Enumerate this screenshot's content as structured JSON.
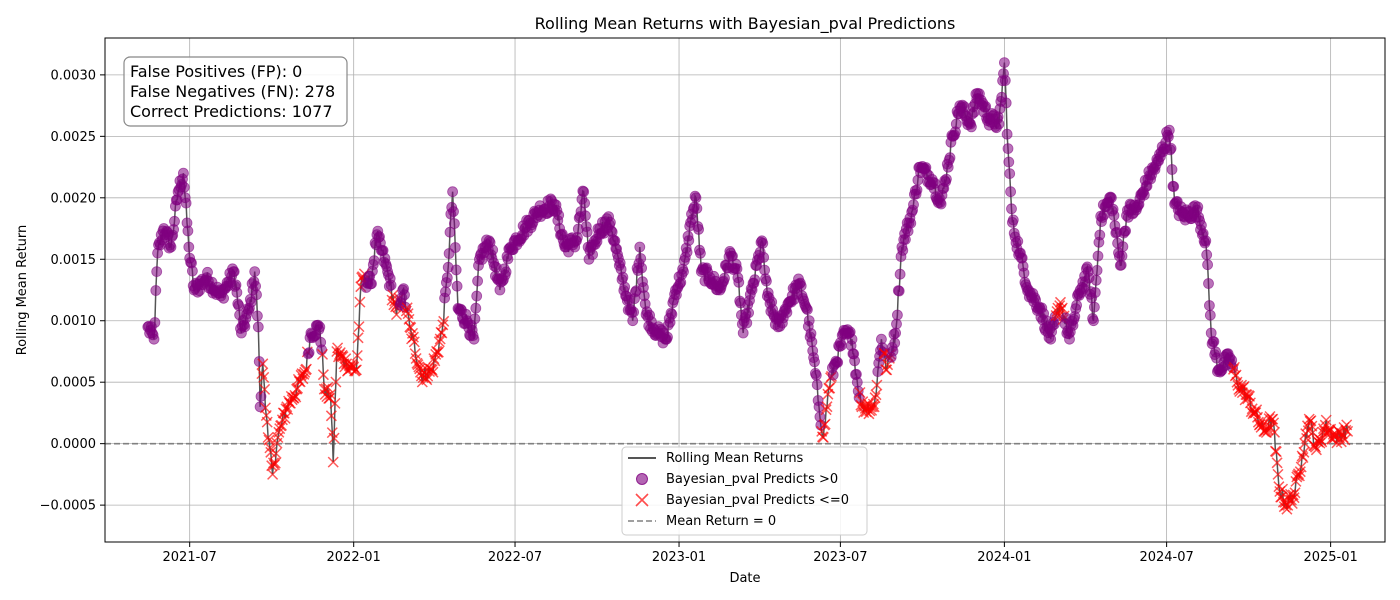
{
  "chart_data": {
    "type": "line",
    "title": "Rolling Mean Returns with Bayesian_pval Predictions",
    "xlabel": "Date",
    "ylabel": "Rolling Mean Return",
    "x_range": [
      "2021-03-28",
      "2025-03-03"
    ],
    "ylim": [
      -0.0008,
      0.0033
    ],
    "grid": true,
    "x_ticks": [
      "2021-07",
      "2022-01",
      "2022-07",
      "2023-01",
      "2023-07",
      "2024-01",
      "2024-07",
      "2025-01"
    ],
    "x_tick_dates": [
      "2021-07-01",
      "2022-01-01",
      "2022-07-01",
      "2023-01-01",
      "2023-07-01",
      "2024-01-01",
      "2024-07-01",
      "2025-01-01"
    ],
    "y_ticks": [
      -0.0005,
      0.0,
      0.0005,
      0.001,
      0.0015,
      0.002,
      0.0025,
      0.003
    ],
    "y_tick_labels": [
      "−0.0005",
      "0.0000",
      "0.0005",
      "0.0010",
      "0.0015",
      "0.0020",
      "0.0025",
      "0.0030"
    ],
    "stats_box": {
      "fp": "False Positives (FP): 0",
      "fn": "False Negatives (FN): 278",
      "correct": "Correct Predictions: 1077"
    },
    "legend": {
      "placement": "bottom-center",
      "line": "Rolling Mean Returns",
      "pos": "Bayesian_pval Predicts >0",
      "neg": "Bayesian_pval Predicts <=0",
      "mean": "Mean Return = 0"
    },
    "colors": {
      "line": "#555555",
      "positive": "#800080",
      "negative": "#ff0000",
      "mean_line": "#808080"
    },
    "reference_line": {
      "y": 0.0,
      "label": "Mean Return = 0"
    },
    "series_keyframes": [
      [
        "2021-05-15",
        0.00095,
        1
      ],
      [
        "2021-05-22",
        0.00085,
        1
      ],
      [
        "2021-05-26",
        0.00155,
        1
      ],
      [
        "2021-06-02",
        0.00175,
        1
      ],
      [
        "2021-06-10",
        0.0016,
        1
      ],
      [
        "2021-06-18",
        0.00205,
        1
      ],
      [
        "2021-06-24",
        0.0022,
        1
      ],
      [
        "2021-06-30",
        0.0016,
        1
      ],
      [
        "2021-07-06",
        0.00125,
        1
      ],
      [
        "2021-07-20",
        0.00135,
        1
      ],
      [
        "2021-08-05",
        0.0012,
        1
      ],
      [
        "2021-08-20",
        0.0014,
        1
      ],
      [
        "2021-08-28",
        0.0009,
        1
      ],
      [
        "2021-09-06",
        0.0011,
        1
      ],
      [
        "2021-09-12",
        0.0014,
        1
      ],
      [
        "2021-09-16",
        0.00095,
        1
      ],
      [
        "2021-09-18",
        0.0003,
        1
      ],
      [
        "2021-09-21",
        0.00065,
        0
      ],
      [
        "2021-09-27",
        5e-05,
        0
      ],
      [
        "2021-10-02",
        -0.00025,
        0
      ],
      [
        "2021-10-08",
        5e-05,
        0
      ],
      [
        "2021-10-18",
        0.0003,
        0
      ],
      [
        "2021-10-30",
        0.00045,
        0
      ],
      [
        "2021-11-08",
        0.0006,
        0
      ],
      [
        "2021-11-14",
        0.0009,
        1
      ],
      [
        "2021-11-24",
        0.00095,
        1
      ],
      [
        "2021-11-30",
        0.0004,
        0
      ],
      [
        "2021-12-06",
        0.0004,
        0
      ],
      [
        "2021-12-09",
        -0.00015,
        0
      ],
      [
        "2021-12-13",
        0.00075,
        0
      ],
      [
        "2021-12-24",
        0.00065,
        0
      ],
      [
        "2022-01-04",
        0.0006,
        0
      ],
      [
        "2022-01-10",
        0.00135,
        0
      ],
      [
        "2022-01-20",
        0.0013,
        1
      ],
      [
        "2022-01-27",
        0.0017,
        1
      ],
      [
        "2022-02-08",
        0.0014,
        1
      ],
      [
        "2022-02-18",
        0.00105,
        0
      ],
      [
        "2022-02-25",
        0.00125,
        1
      ],
      [
        "2022-03-05",
        0.00095,
        0
      ],
      [
        "2022-03-18",
        0.00055,
        0
      ],
      [
        "2022-03-30",
        0.0006,
        0
      ],
      [
        "2022-04-10",
        0.0009,
        0
      ],
      [
        "2022-04-16",
        0.00135,
        1
      ],
      [
        "2022-04-22",
        0.00205,
        1
      ],
      [
        "2022-04-28",
        0.0011,
        1
      ],
      [
        "2022-05-08",
        0.001,
        1
      ],
      [
        "2022-05-16",
        0.00085,
        1
      ],
      [
        "2022-05-22",
        0.0015,
        1
      ],
      [
        "2022-06-02",
        0.00165,
        1
      ],
      [
        "2022-06-14",
        0.00125,
        1
      ],
      [
        "2022-06-26",
        0.0016,
        1
      ],
      [
        "2022-07-12",
        0.00175,
        1
      ],
      [
        "2022-07-28",
        0.0019,
        1
      ],
      [
        "2022-08-14",
        0.00195,
        1
      ],
      [
        "2022-08-26",
        0.0016,
        1
      ],
      [
        "2022-09-08",
        0.00165,
        1
      ],
      [
        "2022-09-16",
        0.00205,
        1
      ],
      [
        "2022-09-22",
        0.0015,
        1
      ],
      [
        "2022-10-04",
        0.00175,
        1
      ],
      [
        "2022-10-16",
        0.0018,
        1
      ],
      [
        "2022-10-26",
        0.00145,
        1
      ],
      [
        "2022-11-03",
        0.0012,
        1
      ],
      [
        "2022-11-10",
        0.001,
        1
      ],
      [
        "2022-11-18",
        0.0016,
        1
      ],
      [
        "2022-11-25",
        0.00105,
        1
      ],
      [
        "2022-12-08",
        0.0009,
        1
      ],
      [
        "2022-12-18",
        0.00085,
        1
      ],
      [
        "2022-12-28",
        0.00125,
        1
      ],
      [
        "2023-01-06",
        0.0014,
        1
      ],
      [
        "2023-01-14",
        0.0018,
        1
      ],
      [
        "2023-01-20",
        0.002,
        1
      ],
      [
        "2023-01-26",
        0.0014,
        1
      ],
      [
        "2023-02-05",
        0.00135,
        1
      ],
      [
        "2023-02-16",
        0.00125,
        1
      ],
      [
        "2023-02-28",
        0.00155,
        1
      ],
      [
        "2023-03-08",
        0.00135,
        1
      ],
      [
        "2023-03-14",
        0.0009,
        1
      ],
      [
        "2023-03-24",
        0.00125,
        1
      ],
      [
        "2023-04-04",
        0.00165,
        1
      ],
      [
        "2023-04-10",
        0.0012,
        1
      ],
      [
        "2023-04-22",
        0.00095,
        1
      ],
      [
        "2023-05-04",
        0.00115,
        1
      ],
      [
        "2023-05-16",
        0.0013,
        1
      ],
      [
        "2023-05-24",
        0.0011,
        1
      ],
      [
        "2023-06-01",
        0.0007,
        1
      ],
      [
        "2023-06-07",
        0.0003,
        1
      ],
      [
        "2023-06-12",
        5e-05,
        0
      ],
      [
        "2023-06-18",
        0.00045,
        0
      ],
      [
        "2023-06-25",
        0.00065,
        1
      ],
      [
        "2023-07-06",
        0.0009,
        1
      ],
      [
        "2023-07-14",
        0.00085,
        1
      ],
      [
        "2023-07-20",
        0.0005,
        1
      ],
      [
        "2023-07-25",
        0.0003,
        0
      ],
      [
        "2023-08-08",
        0.0003,
        0
      ],
      [
        "2023-08-16",
        0.00085,
        1
      ],
      [
        "2023-08-22",
        0.0006,
        0
      ],
      [
        "2023-09-01",
        0.0009,
        1
      ],
      [
        "2023-09-08",
        0.0016,
        1
      ],
      [
        "2023-09-20",
        0.0019,
        1
      ],
      [
        "2023-09-28",
        0.00225,
        1
      ],
      [
        "2023-10-12",
        0.00215,
        1
      ],
      [
        "2023-10-22",
        0.00195,
        1
      ],
      [
        "2023-11-04",
        0.0025,
        1
      ],
      [
        "2023-11-12",
        0.00275,
        1
      ],
      [
        "2023-11-24",
        0.0026,
        1
      ],
      [
        "2023-12-02",
        0.00285,
        1
      ],
      [
        "2023-12-14",
        0.00265,
        1
      ],
      [
        "2023-12-26",
        0.0026,
        1
      ],
      [
        "2024-01-01",
        0.0031,
        1
      ],
      [
        "2024-01-05",
        0.0024,
        1
      ],
      [
        "2024-01-10",
        0.0018,
        1
      ],
      [
        "2024-01-18",
        0.00155,
        1
      ],
      [
        "2024-01-28",
        0.00125,
        1
      ],
      [
        "2024-02-10",
        0.0011,
        1
      ],
      [
        "2024-02-22",
        0.00085,
        1
      ],
      [
        "2024-03-04",
        0.00115,
        0
      ],
      [
        "2024-03-14",
        0.00085,
        1
      ],
      [
        "2024-03-26",
        0.00125,
        1
      ],
      [
        "2024-04-04",
        0.0014,
        1
      ],
      [
        "2024-04-10",
        0.001,
        1
      ],
      [
        "2024-04-18",
        0.00185,
        1
      ],
      [
        "2024-04-30",
        0.002,
        1
      ],
      [
        "2024-05-10",
        0.00145,
        1
      ],
      [
        "2024-05-18",
        0.0019,
        1
      ],
      [
        "2024-05-28",
        0.0019,
        1
      ],
      [
        "2024-06-10",
        0.00215,
        1
      ],
      [
        "2024-06-22",
        0.0023,
        1
      ],
      [
        "2024-07-04",
        0.00255,
        1
      ],
      [
        "2024-07-10",
        0.00195,
        1
      ],
      [
        "2024-07-20",
        0.00185,
        1
      ],
      [
        "2024-08-04",
        0.0019,
        1
      ],
      [
        "2024-08-14",
        0.00165,
        1
      ],
      [
        "2024-08-20",
        0.0009,
        1
      ],
      [
        "2024-08-28",
        0.0006,
        1
      ],
      [
        "2024-09-10",
        0.0007,
        1
      ],
      [
        "2024-09-18",
        0.0005,
        0
      ],
      [
        "2024-09-28",
        0.0004,
        0
      ],
      [
        "2024-10-08",
        0.00025,
        0
      ],
      [
        "2024-10-18",
        0.0001,
        0
      ],
      [
        "2024-10-28",
        0.0002,
        0
      ],
      [
        "2024-11-04",
        -0.00035,
        0
      ],
      [
        "2024-11-12",
        -0.0005,
        0
      ],
      [
        "2024-11-22",
        -0.0004,
        0
      ],
      [
        "2024-11-30",
        -0.0001,
        0
      ],
      [
        "2024-12-08",
        0.0002,
        0
      ],
      [
        "2024-12-16",
        -5e-05,
        0
      ],
      [
        "2024-12-26",
        0.00015,
        0
      ],
      [
        "2025-01-06",
        5e-05,
        0
      ],
      [
        "2025-01-20",
        0.0001,
        0
      ]
    ]
  }
}
